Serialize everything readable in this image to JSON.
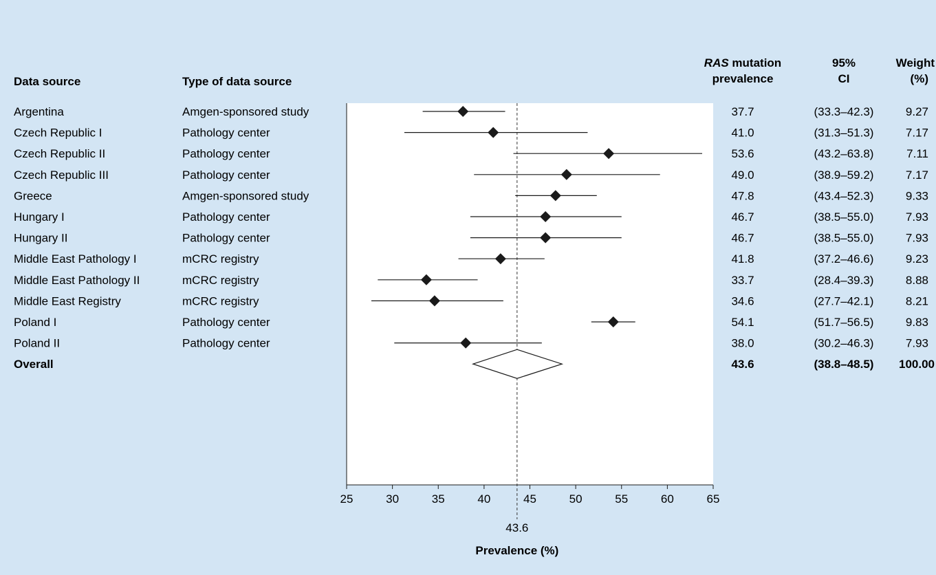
{
  "chart_data": {
    "type": "forest",
    "xlabel": "Prevalence (%)",
    "xlim": [
      25,
      65
    ],
    "xticks": [
      25,
      30,
      35,
      40,
      45,
      50,
      55,
      60,
      65
    ],
    "reference_line": {
      "value": 43.6,
      "label": "43.6",
      "style": "dashed"
    },
    "columns": {
      "data_source": "Data source",
      "type": "Type of data source",
      "prevalence_line1_italic": "RAS",
      "prevalence_line1_rest": " mutation",
      "prevalence_line2": "prevalence",
      "ci_line1": "95%",
      "ci_line2": "CI",
      "weight_line1": "Weight",
      "weight_line2": "(%)"
    },
    "rows": [
      {
        "source": "Argentina",
        "type": "Amgen-sponsored study",
        "estimate": 37.7,
        "lower": 33.3,
        "upper": 42.3,
        "estimate_label": "37.7",
        "ci_label": "(33.3–42.3)",
        "weight": "9.27"
      },
      {
        "source": "Czech Republic I",
        "type": "Pathology center",
        "estimate": 41.0,
        "lower": 31.3,
        "upper": 51.3,
        "estimate_label": "41.0",
        "ci_label": "(31.3–51.3)",
        "weight": "7.17"
      },
      {
        "source": "Czech Republic II",
        "type": "Pathology center",
        "estimate": 53.6,
        "lower": 43.2,
        "upper": 63.8,
        "estimate_label": "53.6",
        "ci_label": "(43.2–63.8)",
        "weight": "7.11"
      },
      {
        "source": "Czech Republic III",
        "type": "Pathology center",
        "estimate": 49.0,
        "lower": 38.9,
        "upper": 59.2,
        "estimate_label": "49.0",
        "ci_label": "(38.9–59.2)",
        "weight": "7.17"
      },
      {
        "source": "Greece",
        "type": "Amgen-sponsored study",
        "estimate": 47.8,
        "lower": 43.4,
        "upper": 52.3,
        "estimate_label": "47.8",
        "ci_label": "(43.4–52.3)",
        "weight": "9.33"
      },
      {
        "source": "Hungary I",
        "type": "Pathology center",
        "estimate": 46.7,
        "lower": 38.5,
        "upper": 55.0,
        "estimate_label": "46.7",
        "ci_label": "(38.5–55.0)",
        "weight": "7.93"
      },
      {
        "source": "Hungary II",
        "type": "Pathology center",
        "estimate": 46.7,
        "lower": 38.5,
        "upper": 55.0,
        "estimate_label": "46.7",
        "ci_label": "(38.5–55.0)",
        "weight": "7.93"
      },
      {
        "source": "Middle East Pathology I",
        "type": "mCRC registry",
        "estimate": 41.8,
        "lower": 37.2,
        "upper": 46.6,
        "estimate_label": "41.8",
        "ci_label": "(37.2–46.6)",
        "weight": "9.23"
      },
      {
        "source": "Middle East Pathology II",
        "type": "mCRC registry",
        "estimate": 33.7,
        "lower": 28.4,
        "upper": 39.3,
        "estimate_label": "33.7",
        "ci_label": "(28.4–39.3)",
        "weight": "8.88"
      },
      {
        "source": "Middle East Registry",
        "type": "mCRC registry",
        "estimate": 34.6,
        "lower": 27.7,
        "upper": 42.1,
        "estimate_label": "34.6",
        "ci_label": "(27.7–42.1)",
        "weight": "8.21"
      },
      {
        "source": "Poland I",
        "type": "Pathology center",
        "estimate": 54.1,
        "lower": 51.7,
        "upper": 56.5,
        "estimate_label": "54.1",
        "ci_label": "(51.7–56.5)",
        "weight": "9.83"
      },
      {
        "source": "Poland II",
        "type": "Pathology center",
        "estimate": 38.0,
        "lower": 30.2,
        "upper": 46.3,
        "estimate_label": "38.0",
        "ci_label": "(30.2–46.3)",
        "weight": "7.93"
      }
    ],
    "overall": {
      "source": "Overall",
      "type": "",
      "estimate": 43.6,
      "lower": 38.8,
      "upper": 48.5,
      "estimate_label": "43.6",
      "ci_label": "(38.8–48.5)",
      "weight": "100.00"
    },
    "colors": {
      "background": "#d3e5f4",
      "plot_area": "#ffffff",
      "marker": "#1a1a1a"
    }
  }
}
